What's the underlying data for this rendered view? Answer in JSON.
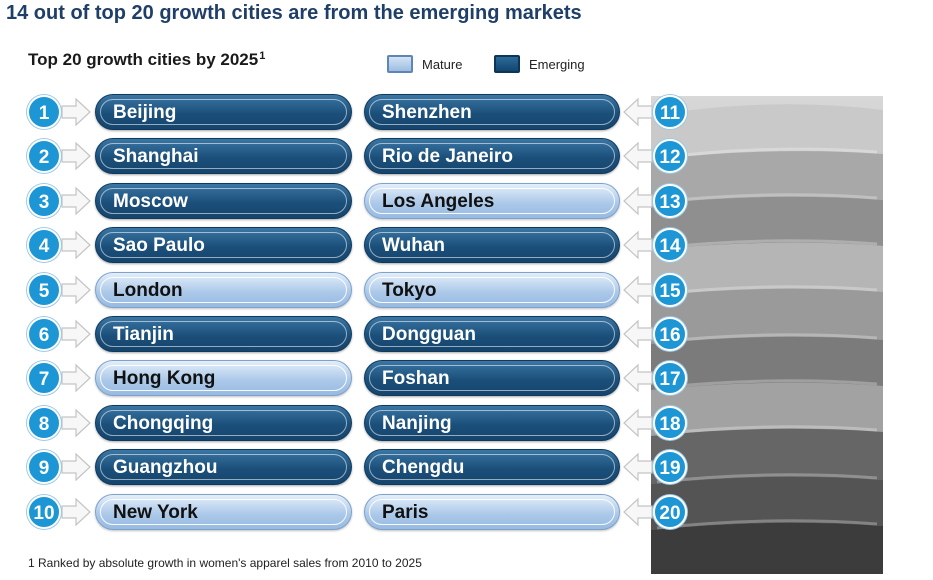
{
  "headline": "14 out of top 20 growth cities are from the emerging markets",
  "subtitle": "Top 20 growth cities by 2025",
  "subtitle_sup": "1",
  "legend": {
    "mature": "Mature",
    "emerging": "Emerging"
  },
  "footnote": "1 Ranked by absolute growth in women's apparel sales from 2010 to 2025",
  "colors": {
    "mature": "#a9c7e8",
    "emerging": "#1b4f7a",
    "rank_circle": "#1c96d4",
    "headline": "#1f3f68"
  },
  "chart_data": {
    "type": "table",
    "title": "Top 20 growth cities by 2025",
    "columns": [
      "rank",
      "city",
      "market"
    ],
    "rows": [
      {
        "rank": "1",
        "city": "Beijing",
        "market": "emerging"
      },
      {
        "rank": "2",
        "city": "Shanghai",
        "market": "emerging"
      },
      {
        "rank": "3",
        "city": "Moscow",
        "market": "emerging"
      },
      {
        "rank": "4",
        "city": "Sao Paulo",
        "market": "emerging"
      },
      {
        "rank": "5",
        "city": "London",
        "market": "mature"
      },
      {
        "rank": "6",
        "city": "Tianjin",
        "market": "emerging"
      },
      {
        "rank": "7",
        "city": "Hong Kong",
        "market": "mature"
      },
      {
        "rank": "8",
        "city": "Chongqing",
        "market": "emerging"
      },
      {
        "rank": "9",
        "city": "Guangzhou",
        "market": "emerging"
      },
      {
        "rank": "10",
        "city": "New York",
        "market": "mature"
      },
      {
        "rank": "11",
        "city": "Shenzhen",
        "market": "emerging"
      },
      {
        "rank": "12",
        "city": "Rio de Janeiro",
        "market": "emerging"
      },
      {
        "rank": "13",
        "city": "Los Angeles",
        "market": "mature"
      },
      {
        "rank": "14",
        "city": "Wuhan",
        "market": "emerging"
      },
      {
        "rank": "15",
        "city": "Tokyo",
        "market": "mature"
      },
      {
        "rank": "16",
        "city": "Dongguan",
        "market": "emerging"
      },
      {
        "rank": "17",
        "city": "Foshan",
        "market": "emerging"
      },
      {
        "rank": "18",
        "city": "Nanjing",
        "market": "emerging"
      },
      {
        "rank": "19",
        "city": "Chengdu",
        "market": "emerging"
      },
      {
        "rank": "20",
        "city": "Paris",
        "market": "mature"
      }
    ]
  }
}
